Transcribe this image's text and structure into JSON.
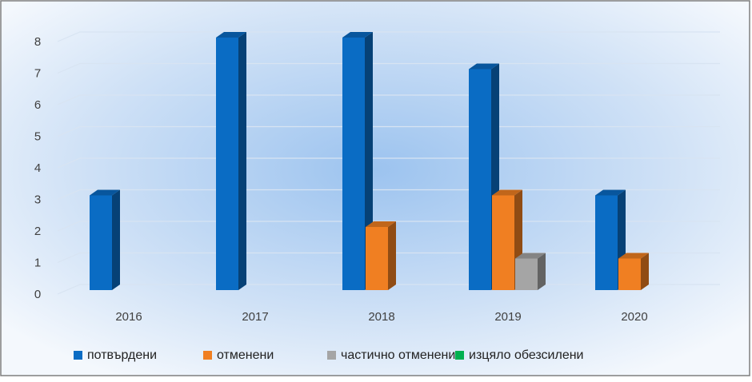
{
  "chart_data": {
    "type": "bar",
    "categories": [
      "2016",
      "2017",
      "2018",
      "2019",
      "2020"
    ],
    "series": [
      {
        "name": "потвърдени",
        "color": "#0a6cc4",
        "values": [
          3,
          8,
          8,
          7,
          3
        ]
      },
      {
        "name": "отменени",
        "color": "#f07f22",
        "values": [
          0,
          0,
          2,
          3,
          1
        ]
      },
      {
        "name": "частично отменени",
        "color": "#a5a5a5",
        "values": [
          0,
          0,
          0,
          1,
          0
        ]
      },
      {
        "name": "изцяло обезсилени",
        "color": "#00b050",
        "values": [
          0,
          0,
          0,
          0,
          0
        ]
      }
    ],
    "ylim": [
      0,
      8
    ],
    "yticks": [
      0,
      1,
      2,
      3,
      4,
      5,
      6,
      7,
      8
    ],
    "grid": true,
    "legend": "bottom"
  }
}
